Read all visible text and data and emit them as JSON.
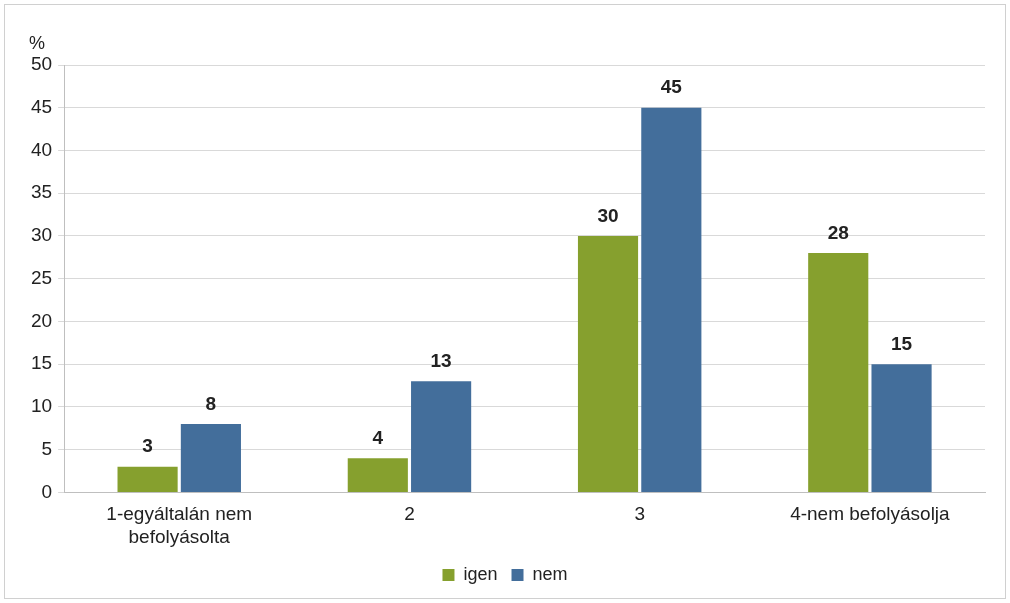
{
  "chart_data": {
    "type": "bar",
    "ylabel": "%",
    "categories": [
      "1-egyáltalán nem befolyásolta",
      "2",
      "3",
      "4-nem befolyásolja"
    ],
    "series": [
      {
        "name": "igen",
        "color": "#86a02e",
        "values": [
          3,
          4,
          30,
          28
        ]
      },
      {
        "name": "nem",
        "color": "#436e9b",
        "values": [
          8,
          13,
          45,
          15
        ]
      }
    ],
    "ylim": [
      0,
      50
    ],
    "yticks": [
      0,
      5,
      10,
      15,
      20,
      25,
      30,
      35,
      40,
      45,
      50
    ],
    "grid": "y",
    "legend": "bottom",
    "data_labels": true
  }
}
